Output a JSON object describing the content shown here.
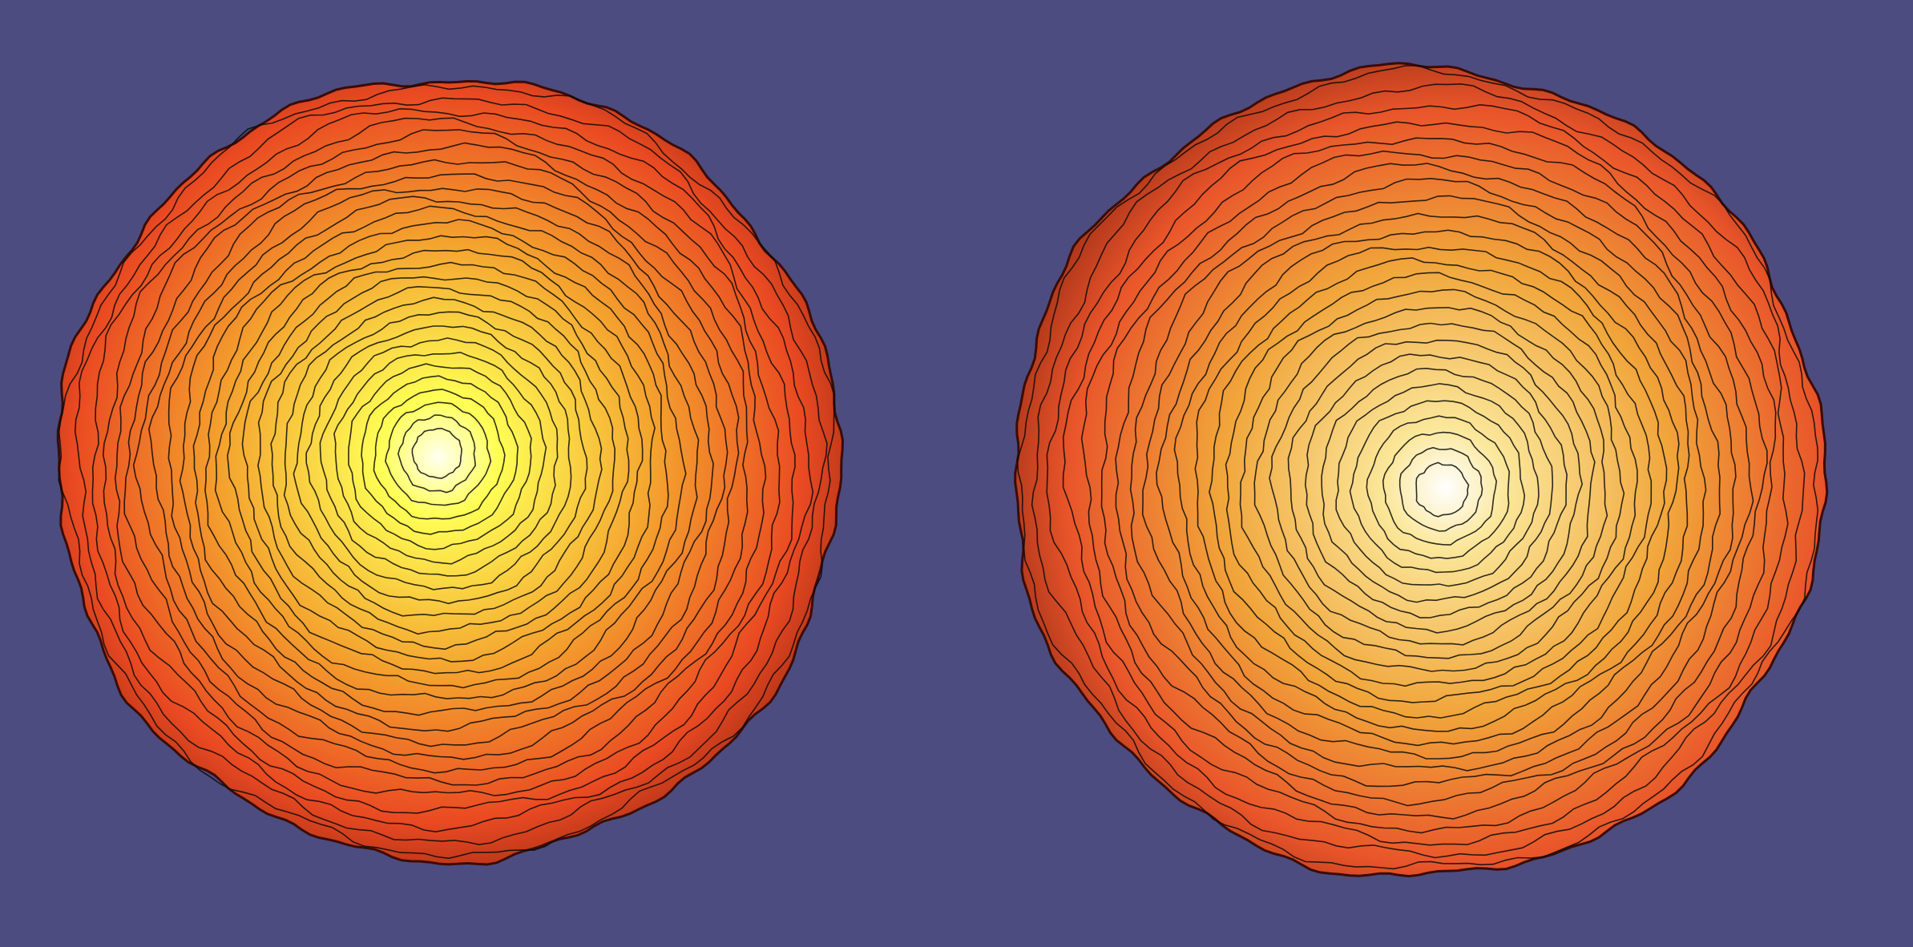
{
  "viewport": {
    "background": "#4c4c80"
  },
  "spheres": [
    {
      "name": "left-sphere",
      "colormap": [
        "#fffff0",
        "#ffff55",
        "#f4a12e",
        "#ea4a22",
        "#7a1a0c"
      ],
      "contour_levels": 28,
      "contour_color": "#0a0a0a"
    },
    {
      "name": "right-sphere",
      "colormap": [
        "#ffffff",
        "#fbe79a",
        "#f1a53a",
        "#e9552a",
        "#7a1a0c"
      ],
      "contour_levels": 26,
      "contour_color": "#0a0a0a"
    }
  ]
}
